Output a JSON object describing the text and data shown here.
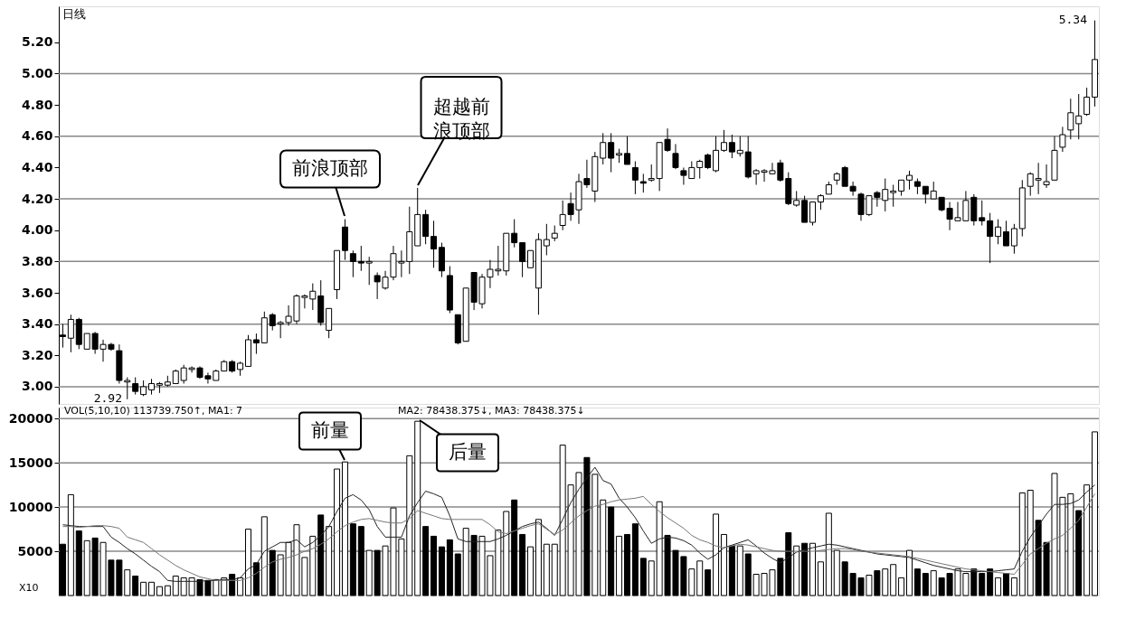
{
  "chart_data": [
    {
      "type": "candlestick",
      "title": "日线",
      "categories": [
        null,
        null,
        null,
        null,
        null,
        null,
        null,
        null,
        null,
        null,
        null,
        null,
        null,
        null,
        null,
        null,
        null,
        null,
        null,
        null,
        null,
        null,
        null,
        null,
        null,
        null,
        null,
        null,
        null,
        null,
        null,
        null,
        null,
        null,
        null,
        null,
        null,
        null,
        null,
        null,
        null,
        null,
        null,
        null,
        null,
        null,
        null,
        null,
        null,
        null,
        null,
        null,
        null,
        null,
        null,
        null,
        null,
        null,
        null,
        null,
        null,
        null,
        null,
        null,
        null,
        null,
        null,
        null,
        null,
        null,
        null,
        null,
        null,
        null,
        null,
        null,
        null,
        null,
        null,
        null,
        null,
        null,
        null,
        null,
        null,
        null,
        null,
        null,
        null,
        null,
        null,
        null,
        null,
        null,
        null,
        null,
        null,
        null,
        null,
        null,
        null,
        null,
        null,
        null,
        null,
        null,
        null,
        null,
        null,
        null,
        null,
        null,
        null,
        null,
        null,
        null,
        null,
        null,
        null,
        null,
        null,
        null,
        null,
        null,
        null,
        null,
        null,
        null,
        null
      ],
      "ohlc": [
        [
          3.33,
          3.4,
          3.25,
          3.32
        ],
        [
          3.31,
          3.46,
          3.22,
          3.43
        ],
        [
          3.43,
          3.44,
          3.24,
          3.27
        ],
        [
          3.24,
          3.34,
          3.24,
          3.34
        ],
        [
          3.34,
          3.35,
          3.21,
          3.24
        ],
        [
          3.24,
          3.3,
          3.16,
          3.27
        ],
        [
          3.27,
          3.28,
          3.23,
          3.24
        ],
        [
          3.23,
          3.27,
          3.02,
          3.04
        ],
        [
          3.03,
          3.06,
          2.92,
          3.04
        ],
        [
          3.02,
          3.06,
          2.95,
          2.97
        ],
        [
          2.95,
          3.04,
          2.94,
          3.0
        ],
        [
          2.98,
          3.05,
          2.95,
          3.02
        ],
        [
          3.01,
          3.03,
          2.96,
          3.02
        ],
        [
          3.01,
          3.07,
          3.0,
          3.03
        ],
        [
          3.02,
          3.11,
          3.02,
          3.1
        ],
        [
          3.04,
          3.14,
          3.02,
          3.12
        ],
        [
          3.11,
          3.13,
          3.09,
          3.12
        ],
        [
          3.12,
          3.13,
          3.05,
          3.06
        ],
        [
          3.07,
          3.09,
          3.02,
          3.05
        ],
        [
          3.04,
          3.11,
          3.04,
          3.1
        ],
        [
          3.1,
          3.17,
          3.1,
          3.16
        ],
        [
          3.16,
          3.17,
          3.09,
          3.1
        ],
        [
          3.11,
          3.16,
          3.07,
          3.15
        ],
        [
          3.13,
          3.33,
          3.13,
          3.3
        ],
        [
          3.3,
          3.34,
          3.21,
          3.28
        ],
        [
          3.28,
          3.48,
          3.28,
          3.44
        ],
        [
          3.46,
          3.47,
          3.36,
          3.39
        ],
        [
          3.4,
          3.42,
          3.31,
          3.41
        ],
        [
          3.41,
          3.52,
          3.39,
          3.45
        ],
        [
          3.42,
          3.59,
          3.4,
          3.58
        ],
        [
          3.57,
          3.59,
          3.5,
          3.58
        ],
        [
          3.56,
          3.66,
          3.49,
          3.61
        ],
        [
          3.58,
          3.68,
          3.39,
          3.41
        ],
        [
          3.36,
          3.5,
          3.31,
          3.5
        ],
        [
          3.62,
          3.87,
          3.56,
          3.87
        ],
        [
          4.02,
          4.07,
          3.81,
          3.87
        ],
        [
          3.85,
          3.87,
          3.7,
          3.8
        ],
        [
          3.8,
          3.9,
          3.74,
          3.79
        ],
        [
          3.79,
          3.83,
          3.65,
          3.8
        ],
        [
          3.71,
          3.73,
          3.56,
          3.67
        ],
        [
          3.63,
          3.74,
          3.62,
          3.7
        ],
        [
          3.7,
          3.9,
          3.68,
          3.85
        ],
        [
          3.79,
          3.87,
          3.7,
          3.8
        ],
        [
          3.8,
          4.15,
          3.72,
          3.99
        ],
        [
          3.9,
          4.27,
          3.9,
          4.1
        ],
        [
          4.1,
          4.13,
          3.91,
          3.96
        ],
        [
          3.96,
          4.06,
          3.76,
          3.88
        ],
        [
          3.89,
          3.92,
          3.7,
          3.74
        ],
        [
          3.71,
          3.77,
          3.47,
          3.49
        ],
        [
          3.46,
          3.46,
          3.27,
          3.28
        ],
        [
          3.29,
          3.63,
          3.29,
          3.63
        ],
        [
          3.73,
          3.73,
          3.49,
          3.54
        ],
        [
          3.53,
          3.72,
          3.5,
          3.7
        ],
        [
          3.7,
          3.81,
          3.63,
          3.75
        ],
        [
          3.74,
          3.9,
          3.71,
          3.75
        ],
        [
          3.74,
          3.98,
          3.71,
          3.98
        ],
        [
          3.98,
          4.07,
          3.89,
          3.92
        ],
        [
          3.92,
          3.92,
          3.7,
          3.8
        ],
        [
          3.76,
          3.87,
          3.76,
          3.87
        ],
        [
          3.63,
          3.98,
          3.46,
          3.94
        ],
        [
          3.9,
          4.04,
          3.84,
          3.94
        ],
        [
          3.95,
          4.03,
          3.93,
          3.98
        ],
        [
          4.03,
          4.19,
          4.0,
          4.1
        ],
        [
          4.17,
          4.24,
          4.06,
          4.1
        ],
        [
          4.13,
          4.36,
          4.04,
          4.31
        ],
        [
          4.33,
          4.45,
          4.27,
          4.29
        ],
        [
          4.25,
          4.5,
          4.18,
          4.47
        ],
        [
          4.46,
          4.62,
          4.42,
          4.56
        ],
        [
          4.56,
          4.62,
          4.37,
          4.46
        ],
        [
          4.48,
          4.52,
          4.43,
          4.49
        ],
        [
          4.49,
          4.6,
          4.42,
          4.42
        ],
        [
          4.4,
          4.44,
          4.23,
          4.32
        ],
        [
          4.31,
          4.36,
          4.24,
          4.3
        ],
        [
          4.32,
          4.42,
          4.31,
          4.33
        ],
        [
          4.33,
          4.56,
          4.25,
          4.56
        ],
        [
          4.58,
          4.65,
          4.5,
          4.51
        ],
        [
          4.49,
          4.55,
          4.39,
          4.4
        ],
        [
          4.38,
          4.4,
          4.29,
          4.35
        ],
        [
          4.33,
          4.44,
          4.33,
          4.4
        ],
        [
          4.4,
          4.45,
          4.33,
          4.44
        ],
        [
          4.48,
          4.49,
          4.39,
          4.4
        ],
        [
          4.38,
          4.6,
          4.37,
          4.51
        ],
        [
          4.51,
          4.64,
          4.5,
          4.56
        ],
        [
          4.56,
          4.61,
          4.46,
          4.5
        ],
        [
          4.49,
          4.6,
          4.47,
          4.51
        ],
        [
          4.5,
          4.6,
          4.33,
          4.34
        ],
        [
          4.36,
          4.39,
          4.29,
          4.38
        ],
        [
          4.37,
          4.39,
          4.31,
          4.38
        ],
        [
          4.36,
          4.43,
          4.36,
          4.38
        ],
        [
          4.43,
          4.45,
          4.31,
          4.32
        ],
        [
          4.33,
          4.37,
          4.16,
          4.17
        ],
        [
          4.16,
          4.25,
          4.15,
          4.19
        ],
        [
          4.19,
          4.22,
          4.05,
          4.05
        ],
        [
          4.05,
          4.18,
          4.03,
          4.18
        ],
        [
          4.18,
          4.23,
          4.13,
          4.22
        ],
        [
          4.23,
          4.31,
          4.23,
          4.29
        ],
        [
          4.32,
          4.37,
          4.29,
          4.36
        ],
        [
          4.4,
          4.41,
          4.28,
          4.28
        ],
        [
          4.28,
          4.31,
          4.22,
          4.25
        ],
        [
          4.23,
          4.24,
          4.06,
          4.1
        ],
        [
          4.1,
          4.22,
          4.09,
          4.22
        ],
        [
          4.24,
          4.25,
          4.15,
          4.21
        ],
        [
          4.19,
          4.33,
          4.12,
          4.26
        ],
        [
          4.24,
          4.29,
          4.15,
          4.25
        ],
        [
          4.25,
          4.32,
          4.22,
          4.32
        ],
        [
          4.32,
          4.38,
          4.26,
          4.35
        ],
        [
          4.31,
          4.33,
          4.23,
          4.28
        ],
        [
          4.28,
          4.28,
          4.17,
          4.23
        ],
        [
          4.2,
          4.31,
          4.2,
          4.25
        ],
        [
          4.21,
          4.21,
          4.12,
          4.13
        ],
        [
          4.14,
          4.18,
          4.0,
          4.07
        ],
        [
          4.06,
          4.18,
          4.06,
          4.08
        ],
        [
          4.06,
          4.25,
          4.06,
          4.19
        ],
        [
          4.21,
          4.23,
          4.03,
          4.06
        ],
        [
          4.08,
          4.19,
          4.03,
          4.06
        ],
        [
          4.06,
          4.11,
          3.79,
          3.96
        ],
        [
          3.96,
          4.07,
          3.91,
          4.02
        ],
        [
          3.99,
          4.06,
          3.9,
          3.9
        ],
        [
          3.9,
          4.04,
          3.85,
          4.01
        ],
        [
          4.01,
          4.32,
          3.96,
          4.27
        ],
        [
          4.28,
          4.37,
          4.22,
          4.36
        ],
        [
          4.32,
          4.43,
          4.23,
          4.33
        ],
        [
          4.29,
          4.42,
          4.27,
          4.31
        ],
        [
          4.32,
          4.6,
          4.32,
          4.51
        ],
        [
          4.53,
          4.66,
          4.5,
          4.61
        ],
        [
          4.64,
          4.84,
          4.58,
          4.75
        ],
        [
          4.68,
          4.87,
          4.58,
          4.73
        ],
        [
          4.74,
          4.91,
          4.73,
          4.85
        ],
        [
          4.85,
          5.34,
          4.79,
          5.09
        ]
      ],
      "colors": [
        "#000000",
        "#ffffff",
        "#000000",
        "#ffffff",
        "#000000",
        "#ffffff",
        "#000000",
        "#000000",
        "#ffffff",
        "#000000",
        "#ffffff",
        "#ffffff",
        "#ffffff",
        "#ffffff",
        "#ffffff",
        "#ffffff",
        "#ffffff",
        "#000000",
        "#000000",
        "#ffffff",
        "#ffffff",
        "#000000",
        "#ffffff",
        "#ffffff",
        "#000000",
        "#ffffff",
        "#000000",
        "#ffffff",
        "#ffffff",
        "#ffffff",
        "#ffffff",
        "#ffffff",
        "#000000",
        "#ffffff",
        "#ffffff",
        "#000000",
        "#000000",
        "#000000",
        "#ffffff",
        "#000000",
        "#ffffff",
        "#ffffff",
        "#ffffff",
        "#ffffff",
        "#ffffff",
        "#000000",
        "#000000",
        "#000000",
        "#000000",
        "#000000",
        "#ffffff",
        "#000000",
        "#ffffff",
        "#ffffff",
        "#ffffff",
        "#ffffff",
        "#000000",
        "#000000",
        "#ffffff",
        "#ffffff",
        "#ffffff",
        "#ffffff",
        "#ffffff",
        "#000000",
        "#ffffff",
        "#000000",
        "#ffffff",
        "#ffffff",
        "#000000",
        "#ffffff",
        "#000000",
        "#000000",
        "#000000",
        "#ffffff",
        "#ffffff",
        "#000000",
        "#000000",
        "#000000",
        "#ffffff",
        "#ffffff",
        "#000000",
        "#ffffff",
        "#ffffff",
        "#000000",
        "#ffffff",
        "#000000",
        "#ffffff",
        "#ffffff",
        "#ffffff",
        "#000000",
        "#000000",
        "#ffffff",
        "#000000",
        "#ffffff",
        "#ffffff",
        "#ffffff",
        "#ffffff",
        "#000000",
        "#000000",
        "#000000",
        "#ffffff",
        "#000000",
        "#ffffff",
        "#ffffff",
        "#ffffff",
        "#ffffff",
        "#000000",
        "#000000",
        "#ffffff",
        "#000000",
        "#000000",
        "#ffffff",
        "#ffffff",
        "#000000",
        "#000000",
        "#000000",
        "#ffffff",
        "#000000",
        "#ffffff",
        "#ffffff",
        "#ffffff",
        "#ffffff",
        "#ffffff",
        "#ffffff",
        "#ffffff",
        "#ffffff",
        "#ffffff",
        "#ffffff",
        "#ffffff"
      ],
      "ylim": [
        2.89,
        5.43
      ],
      "yticks": [
        {
          "value": 3.0,
          "label": "3.00"
        },
        {
          "value": 3.2,
          "label": "3.20"
        },
        {
          "value": 3.4,
          "label": "3.40"
        },
        {
          "value": 3.6,
          "label": "3.60"
        },
        {
          "value": 3.8,
          "label": "3.80"
        },
        {
          "value": 4.0,
          "label": "4.00"
        },
        {
          "value": 4.2,
          "label": "4.20"
        },
        {
          "value": 4.4,
          "label": "4.40"
        },
        {
          "value": 4.6,
          "label": "4.60"
        },
        {
          "value": 4.8,
          "label": "4.80"
        },
        {
          "value": 5.0,
          "label": "5.00"
        },
        {
          "value": 5.2,
          "label": "5.20"
        }
      ],
      "grid": "y",
      "annotations": [
        "前浪顶部",
        "超越前浪顶部",
        "2.92",
        "5.34"
      ]
    },
    {
      "type": "bar",
      "categories": [
        null,
        null,
        null,
        null,
        null,
        null,
        null,
        null,
        null,
        null,
        null,
        null,
        null,
        null,
        null,
        null,
        null,
        null,
        null,
        null,
        null,
        null,
        null,
        null,
        null,
        null,
        null,
        null,
        null,
        null,
        null,
        null,
        null,
        null,
        null,
        null,
        null,
        null,
        null,
        null,
        null,
        null,
        null,
        null,
        null,
        null,
        null,
        null,
        null,
        null,
        null,
        null,
        null,
        null,
        null,
        null,
        null,
        null,
        null,
        null,
        null,
        null,
        null,
        null,
        null,
        null,
        null,
        null,
        null,
        null,
        null,
        null,
        null,
        null,
        null,
        null,
        null,
        null,
        null,
        null,
        null,
        null,
        null,
        null,
        null,
        null,
        null,
        null,
        null,
        null,
        null,
        null,
        null,
        null,
        null,
        null,
        null,
        null,
        null,
        null,
        null,
        null,
        null,
        null,
        null,
        null,
        null,
        null,
        null,
        null,
        null,
        null,
        null,
        null,
        null,
        null,
        null,
        null,
        null,
        null,
        null,
        null,
        null,
        null,
        null,
        null,
        null,
        null,
        null
      ],
      "series": [
        {
          "type": "bar",
          "values": [
            5800,
            11400,
            7300,
            6200,
            6500,
            6000,
            4000,
            4000,
            2900,
            2200,
            1500,
            1500,
            1000,
            1100,
            2200,
            2000,
            2000,
            1800,
            1700,
            1800,
            2000,
            2400,
            2000,
            7500,
            3700,
            8900,
            5100,
            4600,
            6000,
            8000,
            4300,
            6700,
            9100,
            7800,
            14300,
            15100,
            8100,
            7800,
            5100,
            5100,
            5600,
            9900,
            6400,
            15800,
            19700,
            7800,
            6700,
            5500,
            6300,
            4700,
            7600,
            6800,
            6700,
            4500,
            7400,
            9500,
            10800,
            6900,
            5500,
            8600,
            5800,
            5800,
            17000,
            12500,
            13900,
            15600,
            13700,
            10800,
            10000,
            6700,
            6900,
            8100,
            4200,
            3900,
            10600,
            6800,
            5100,
            4400,
            3000,
            3900,
            2900,
            9200,
            6900,
            5600,
            5600,
            4700,
            2400,
            2500,
            2900,
            4200,
            7100,
            5600,
            5900,
            5900,
            3800,
            9300,
            5100,
            3800,
            2500,
            2000,
            2300,
            2800,
            3000,
            3500,
            2000,
            5100,
            3000,
            2500,
            2800,
            2000,
            2500,
            3000,
            2500,
            3000,
            2500,
            3000,
            2000,
            2500,
            2000,
            11600,
            11900,
            8500,
            6000,
            13800,
            11100,
            11500,
            9600,
            12500,
            18500
          ],
          "colors": [
            "#000000",
            "#ffffff",
            "#000000",
            "#ffffff",
            "#000000",
            "#ffffff",
            "#000000",
            "#000000",
            "#ffffff",
            "#000000",
            "#ffffff",
            "#ffffff",
            "#ffffff",
            "#ffffff",
            "#ffffff",
            "#ffffff",
            "#ffffff",
            "#000000",
            "#000000",
            "#ffffff",
            "#ffffff",
            "#000000",
            "#ffffff",
            "#ffffff",
            "#000000",
            "#ffffff",
            "#000000",
            "#ffffff",
            "#ffffff",
            "#ffffff",
            "#ffffff",
            "#ffffff",
            "#000000",
            "#ffffff",
            "#ffffff",
            "#ffffff",
            "#000000",
            "#000000",
            "#ffffff",
            "#000000",
            "#ffffff",
            "#ffffff",
            "#ffffff",
            "#ffffff",
            "#ffffff",
            "#000000",
            "#000000",
            "#000000",
            "#000000",
            "#000000",
            "#ffffff",
            "#000000",
            "#ffffff",
            "#ffffff",
            "#ffffff",
            "#ffffff",
            "#000000",
            "#000000",
            "#ffffff",
            "#ffffff",
            "#ffffff",
            "#ffffff",
            "#ffffff",
            "#ffffff",
            "#ffffff",
            "#000000",
            "#ffffff",
            "#ffffff",
            "#000000",
            "#ffffff",
            "#000000",
            "#000000",
            "#000000",
            "#ffffff",
            "#ffffff",
            "#000000",
            "#000000",
            "#000000",
            "#ffffff",
            "#ffffff",
            "#000000",
            "#ffffff",
            "#ffffff",
            "#000000",
            "#ffffff",
            "#000000",
            "#ffffff",
            "#ffffff",
            "#ffffff",
            "#000000",
            "#000000",
            "#ffffff",
            "#000000",
            "#ffffff",
            "#ffffff",
            "#ffffff",
            "#ffffff",
            "#000000",
            "#000000",
            "#000000",
            "#ffffff",
            "#000000",
            "#ffffff",
            "#ffffff",
            "#ffffff",
            "#ffffff",
            "#000000",
            "#000000",
            "#ffffff",
            "#000000",
            "#000000",
            "#ffffff",
            "#ffffff",
            "#000000",
            "#000000",
            "#000000",
            "#ffffff",
            "#000000",
            "#ffffff",
            "#ffffff",
            "#ffffff",
            "#000000",
            "#000000",
            "#ffffff",
            "#ffffff",
            "#ffffff",
            "#000000",
            "#ffffff",
            "#ffffff"
          ]
        },
        {
          "type": "line",
          "color": "#222222",
          "values": [
            8000,
            7900,
            7800,
            7800,
            7800,
            7800,
            6600,
            6000,
            5300,
            4700,
            4000,
            3300,
            2700,
            1700,
            1600,
            1600,
            1600,
            1600,
            1700,
            1700,
            1800,
            1800,
            2000,
            3000,
            3500,
            5000,
            5500,
            6000,
            6000,
            6300,
            5500,
            6000,
            6800,
            7800,
            9500,
            11000,
            11400,
            10800,
            9700,
            7800,
            6600,
            6600,
            6600,
            9000,
            10500,
            11800,
            11500,
            11100,
            9000,
            6400,
            6100,
            6100,
            6100,
            6100,
            6400,
            6800,
            7300,
            7800,
            8100,
            8300,
            7600,
            6800,
            8600,
            10500,
            12000,
            13300,
            14500,
            13000,
            12600,
            11000,
            10000,
            8800,
            7300,
            5900,
            6400,
            6600,
            6500,
            6200,
            5700,
            4800,
            4100,
            4600,
            5400,
            5700,
            6000,
            6300,
            5600,
            4800,
            4200,
            3700,
            4300,
            4900,
            5200,
            5400,
            5600,
            5800,
            5700,
            5500,
            5300,
            5100,
            4900,
            4700,
            4600,
            4500,
            4400,
            4300,
            4000,
            3700,
            3400,
            3200,
            3000,
            2800,
            2700,
            2700,
            2700,
            2700,
            2800,
            2900,
            3000,
            5000,
            6600,
            7900,
            9200,
            10300,
            10300,
            10400,
            10800,
            11700,
            12500
          ]
        },
        {
          "type": "line",
          "color": "#777777",
          "values": [
            7800,
            7800,
            7700,
            7800,
            7900,
            7900,
            7800,
            7600,
            6600,
            6300,
            6000,
            5300,
            4600,
            4000,
            3400,
            2900,
            2500,
            2100,
            1900,
            1700,
            1700,
            1700,
            1700,
            2000,
            2500,
            3200,
            3800,
            4100,
            4300,
            4600,
            5000,
            5300,
            5800,
            6400,
            7200,
            7900,
            8300,
            8600,
            8700,
            8500,
            8300,
            8200,
            8200,
            8700,
            9600,
            9300,
            9000,
            8700,
            8600,
            8600,
            8600,
            8600,
            8600,
            8000,
            7200,
            7000,
            7300,
            7600,
            7900,
            8100,
            7500,
            6900,
            7400,
            8200,
            9000,
            9600,
            10100,
            10300,
            10600,
            10800,
            10900,
            11000,
            11200,
            10300,
            9500,
            8800,
            8200,
            7600,
            6800,
            6300,
            6000,
            5600,
            5400,
            5600,
            5800,
            5700,
            5500,
            5300,
            5100,
            5000,
            5000,
            5000,
            5000,
            5000,
            5100,
            5200,
            5300,
            5300,
            5200,
            5000,
            4900,
            4800,
            4700,
            4600,
            4500,
            4400,
            4200,
            4000,
            3800,
            3600,
            3400,
            3200,
            3000,
            2900,
            2800,
            2700,
            2600,
            2500,
            2400,
            3500,
            4700,
            5300,
            5900,
            6400,
            6800,
            7600,
            8500,
            10000,
            11500
          ]
        }
      ],
      "ylim": [
        0,
        21250
      ],
      "yticks": [
        5000,
        10000,
        15000,
        20000
      ],
      "grid": "y",
      "annotations": [
        "VOL(5,10,10) 113739.750↑, MA1: 7",
        "MA2: 78438.375↓, MA3: 78438.375↓",
        "前量",
        "后量",
        "X10"
      ]
    }
  ]
}
